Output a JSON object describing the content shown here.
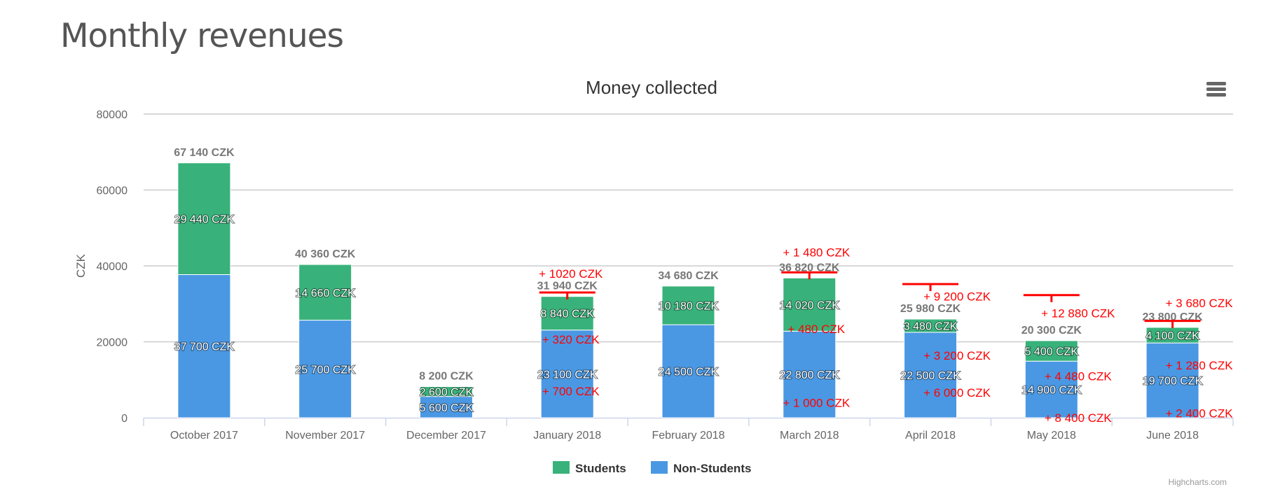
{
  "page": {
    "title": "Monthly revenues"
  },
  "credits": "Highcharts.com",
  "chart_data": {
    "type": "bar",
    "stacked": true,
    "title": "Money collected",
    "ylabel": "CZK",
    "ylim": [
      0,
      80000
    ],
    "yticks": [
      "0",
      "20000",
      "40000",
      "60000",
      "80000"
    ],
    "grid": true,
    "legend_placement": "bottom-center",
    "categories": [
      "October 2017",
      "November 2017",
      "December 2017",
      "January 2018",
      "February 2018",
      "March 2018",
      "April 2018",
      "May 2018",
      "June 2018"
    ],
    "totals_labels": [
      "67 140 CZK",
      "40 360 CZK",
      "8 200 CZK",
      "31 940 CZK",
      "34 680 CZK",
      "36 820 CZK",
      "25 980 CZK",
      "20 300 CZK",
      "23 800 CZK"
    ],
    "series": [
      {
        "name": "Students",
        "color": "#38b27a",
        "values": [
          29440,
          14660,
          2600,
          8840,
          10180,
          14020,
          3480,
          5400,
          4100
        ],
        "labels": [
          "29 440 CZK",
          "14 660 CZK",
          "2 600 CZK",
          "8 840 CZK",
          "10 180 CZK",
          "14 020 CZK",
          "3 480 CZK",
          "5 400 CZK",
          "4 100 CZK"
        ]
      },
      {
        "name": "Non-Students",
        "color": "#4a98e3",
        "values": [
          37700,
          25700,
          5600,
          23100,
          24500,
          22800,
          22500,
          14900,
          19700
        ],
        "labels": [
          "37 700 CZK",
          "25 700 CZK",
          "5 600 CZK",
          "23 100 CZK",
          "24 500 CZK",
          "22 800 CZK",
          "22 500 CZK",
          "14 900 CZK",
          "19 700 CZK"
        ]
      }
    ],
    "targets": [
      {
        "category": 3,
        "value": 33000
      },
      {
        "category": 5,
        "value": 38300
      },
      {
        "category": 6,
        "value": 35200
      },
      {
        "category": 7,
        "value": 32300
      },
      {
        "category": 8,
        "value": 25500
      }
    ],
    "annotations": [
      {
        "category": 3,
        "text": "+ 1020 CZK",
        "value": 38000
      },
      {
        "category": 3,
        "text": "+ 320 CZK",
        "value": 20600
      },
      {
        "category": 3,
        "text": "+ 700 CZK",
        "value": 7000
      },
      {
        "category": 5,
        "text": "+ 1 480 CZK",
        "value": 43600
      },
      {
        "category": 5,
        "text": "+ 480 CZK",
        "value": 23400
      },
      {
        "category": 5,
        "text": "+ 1 000 CZK",
        "value": 4000
      },
      {
        "category": 6,
        "text": "+ 9 200 CZK",
        "value": 32000
      },
      {
        "category": 6,
        "text": "+ 3 200 CZK",
        "value": 16400
      },
      {
        "category": 6,
        "text": "+ 6 000 CZK",
        "value": 6600
      },
      {
        "category": 7,
        "text": "+ 12 880 CZK",
        "value": 27600
      },
      {
        "category": 7,
        "text": "+ 4 480 CZK",
        "value": 11000
      },
      {
        "category": 7,
        "text": "+ 8 400 CZK",
        "value": 0
      },
      {
        "category": 8,
        "text": "+ 3 680 CZK",
        "value": 30200
      },
      {
        "category": 8,
        "text": "+ 1 280 CZK",
        "value": 13800
      },
      {
        "category": 8,
        "text": "+ 2 400 CZK",
        "value": 1200
      }
    ],
    "annotation_color": "#ff0000"
  }
}
